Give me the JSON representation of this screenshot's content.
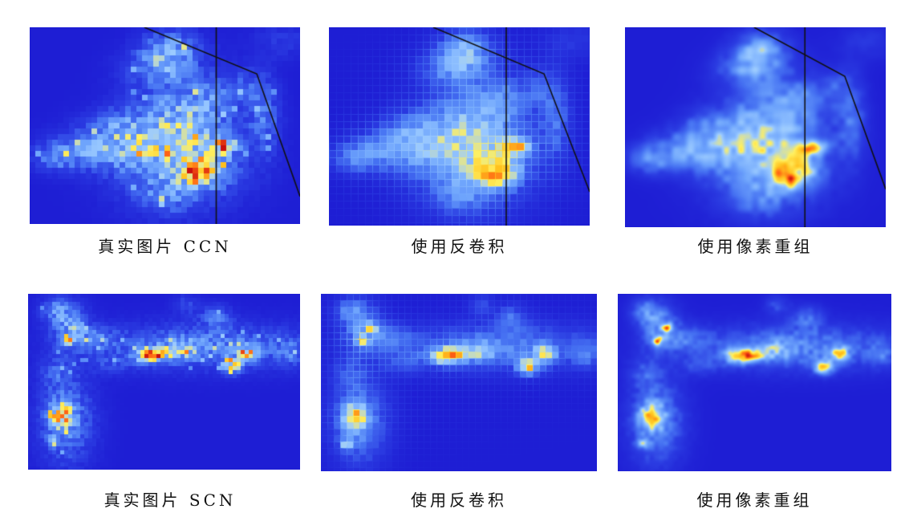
{
  "figure": {
    "rows": [
      {
        "panels": [
          {
            "caption": "真实图片 CCN"
          },
          {
            "caption": "使用反卷积"
          },
          {
            "caption": "使用像素重组"
          }
        ]
      },
      {
        "panels": [
          {
            "caption": "真实图片 SCN"
          },
          {
            "caption": "使用反卷积"
          },
          {
            "caption": "使用像素重组"
          }
        ]
      }
    ]
  },
  "colors": {
    "page_background": "#ffffff",
    "overlay_line": "#111111",
    "colormap": [
      "#1e1ed4",
      "#2b3ce2",
      "#4672f2",
      "#6ea4fc",
      "#9ccbff",
      "#fff060",
      "#ffc21e",
      "#ff6414",
      "#c80f0f"
    ]
  }
}
